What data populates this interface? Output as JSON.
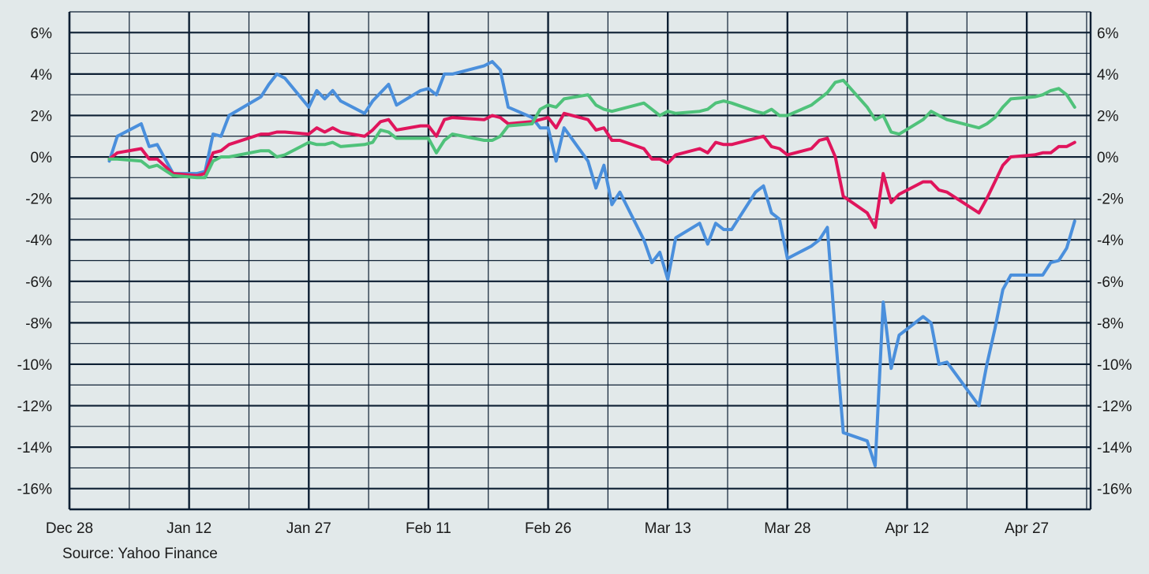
{
  "source_text": "Source: Yahoo Finance",
  "chart_data": {
    "type": "line",
    "title": "",
    "xlabel": "",
    "ylabel": "",
    "x_range": [
      "2024-12-28",
      "2025-05-05"
    ],
    "ylim": [
      -17,
      7
    ],
    "y_ticks": [
      6,
      4,
      2,
      0,
      -2,
      -4,
      -6,
      -8,
      -10,
      -12,
      -14,
      -16
    ],
    "y_tick_labels": [
      "6%",
      "4%",
      "2%",
      "0%",
      "-2%",
      "-4%",
      "-6%",
      "-8%",
      "-10%",
      "-12%",
      "-14%",
      "-16%"
    ],
    "x_ticks": [
      "2024-12-28",
      "2025-01-12",
      "2025-01-27",
      "2025-02-11",
      "2025-02-26",
      "2025-03-13",
      "2025-03-28",
      "2025-04-12",
      "2025-04-27"
    ],
    "x_tick_labels": [
      "Dec 28",
      "Jan 12",
      "Jan 27",
      "Feb 11",
      "Feb 26",
      "Mar 13",
      "Mar 28",
      "Apr 12",
      "Apr 27"
    ],
    "grid": true,
    "colors": {
      "blue": "#4a8fdc",
      "red": "#e0155c",
      "green": "#4fc27a"
    },
    "series": [
      {
        "color": "#4a8fdc",
        "points": [
          [
            "2025-01-02",
            -0.2
          ],
          [
            "2025-01-03",
            1.0
          ],
          [
            "2025-01-06",
            1.6
          ],
          [
            "2025-01-07",
            0.5
          ],
          [
            "2025-01-08",
            0.6
          ],
          [
            "2025-01-10",
            -0.8
          ],
          [
            "2025-01-13",
            -0.8
          ],
          [
            "2025-01-14",
            -0.7
          ],
          [
            "2025-01-15",
            1.1
          ],
          [
            "2025-01-16",
            1.0
          ],
          [
            "2025-01-17",
            2.0
          ],
          [
            "2025-01-21",
            2.9
          ],
          [
            "2025-01-22",
            3.5
          ],
          [
            "2025-01-23",
            4.0
          ],
          [
            "2025-01-24",
            3.8
          ],
          [
            "2025-01-27",
            2.4
          ],
          [
            "2025-01-28",
            3.2
          ],
          [
            "2025-01-29",
            2.8
          ],
          [
            "2025-01-30",
            3.2
          ],
          [
            "2025-01-31",
            2.7
          ],
          [
            "2025-02-03",
            2.1
          ],
          [
            "2025-02-04",
            2.7
          ],
          [
            "2025-02-05",
            3.1
          ],
          [
            "2025-02-06",
            3.5
          ],
          [
            "2025-02-07",
            2.5
          ],
          [
            "2025-02-10",
            3.2
          ],
          [
            "2025-02-11",
            3.3
          ],
          [
            "2025-02-12",
            3.0
          ],
          [
            "2025-02-13",
            4.0
          ],
          [
            "2025-02-14",
            4.0
          ],
          [
            "2025-02-18",
            4.4
          ],
          [
            "2025-02-19",
            4.6
          ],
          [
            "2025-02-20",
            4.2
          ],
          [
            "2025-02-21",
            2.4
          ],
          [
            "2025-02-24",
            1.9
          ],
          [
            "2025-02-25",
            1.4
          ],
          [
            "2025-02-26",
            1.4
          ],
          [
            "2025-02-27",
            -0.2
          ],
          [
            "2025-02-28",
            1.4
          ],
          [
            "2025-03-03",
            -0.2
          ],
          [
            "2025-03-04",
            -1.5
          ],
          [
            "2025-03-05",
            -0.4
          ],
          [
            "2025-03-06",
            -2.3
          ],
          [
            "2025-03-07",
            -1.7
          ],
          [
            "2025-03-10",
            -4.0
          ],
          [
            "2025-03-11",
            -5.1
          ],
          [
            "2025-03-12",
            -4.6
          ],
          [
            "2025-03-13",
            -5.9
          ],
          [
            "2025-03-14",
            -3.9
          ],
          [
            "2025-03-17",
            -3.2
          ],
          [
            "2025-03-18",
            -4.2
          ],
          [
            "2025-03-19",
            -3.2
          ],
          [
            "2025-03-20",
            -3.5
          ],
          [
            "2025-03-21",
            -3.5
          ],
          [
            "2025-03-24",
            -1.7
          ],
          [
            "2025-03-25",
            -1.4
          ],
          [
            "2025-03-26",
            -2.7
          ],
          [
            "2025-03-27",
            -3.0
          ],
          [
            "2025-03-28",
            -4.9
          ],
          [
            "2025-03-31",
            -4.3
          ],
          [
            "2025-04-01",
            -4.0
          ],
          [
            "2025-04-02",
            -3.4
          ],
          [
            "2025-04-03",
            -8.5
          ],
          [
            "2025-04-04",
            -13.3
          ],
          [
            "2025-04-07",
            -13.7
          ],
          [
            "2025-04-08",
            -14.9
          ],
          [
            "2025-04-09",
            -7.0
          ],
          [
            "2025-04-10",
            -10.2
          ],
          [
            "2025-04-11",
            -8.6
          ],
          [
            "2025-04-14",
            -7.7
          ],
          [
            "2025-04-15",
            -8.0
          ],
          [
            "2025-04-16",
            -10.0
          ],
          [
            "2025-04-17",
            -9.9
          ],
          [
            "2025-04-21",
            -12.0
          ],
          [
            "2025-04-22",
            -10.0
          ],
          [
            "2025-04-23",
            -8.3
          ],
          [
            "2025-04-24",
            -6.4
          ],
          [
            "2025-04-25",
            -5.7
          ],
          [
            "2025-04-28",
            -5.7
          ],
          [
            "2025-04-29",
            -5.7
          ],
          [
            "2025-04-30",
            -5.1
          ],
          [
            "2025-05-01",
            -5.0
          ],
          [
            "2025-05-02",
            -4.4
          ],
          [
            "2025-05-03",
            -3.1
          ]
        ]
      },
      {
        "color": "#e0155c",
        "points": [
          [
            "2025-01-02",
            -0.1
          ],
          [
            "2025-01-03",
            0.2
          ],
          [
            "2025-01-06",
            0.4
          ],
          [
            "2025-01-07",
            -0.1
          ],
          [
            "2025-01-08",
            -0.1
          ],
          [
            "2025-01-10",
            -0.8
          ],
          [
            "2025-01-13",
            -0.9
          ],
          [
            "2025-01-14",
            -0.8
          ],
          [
            "2025-01-15",
            0.2
          ],
          [
            "2025-01-16",
            0.3
          ],
          [
            "2025-01-17",
            0.6
          ],
          [
            "2025-01-21",
            1.1
          ],
          [
            "2025-01-22",
            1.1
          ],
          [
            "2025-01-23",
            1.2
          ],
          [
            "2025-01-24",
            1.2
          ],
          [
            "2025-01-27",
            1.1
          ],
          [
            "2025-01-28",
            1.4
          ],
          [
            "2025-01-29",
            1.2
          ],
          [
            "2025-01-30",
            1.4
          ],
          [
            "2025-01-31",
            1.2
          ],
          [
            "2025-02-03",
            1.0
          ],
          [
            "2025-02-04",
            1.3
          ],
          [
            "2025-02-05",
            1.7
          ],
          [
            "2025-02-06",
            1.8
          ],
          [
            "2025-02-07",
            1.3
          ],
          [
            "2025-02-10",
            1.5
          ],
          [
            "2025-02-11",
            1.5
          ],
          [
            "2025-02-12",
            1.0
          ],
          [
            "2025-02-13",
            1.8
          ],
          [
            "2025-02-14",
            1.9
          ],
          [
            "2025-02-18",
            1.8
          ],
          [
            "2025-02-19",
            2.0
          ],
          [
            "2025-02-20",
            1.9
          ],
          [
            "2025-02-21",
            1.6
          ],
          [
            "2025-02-24",
            1.7
          ],
          [
            "2025-02-25",
            1.8
          ],
          [
            "2025-02-26",
            1.9
          ],
          [
            "2025-02-27",
            1.4
          ],
          [
            "2025-02-28",
            2.1
          ],
          [
            "2025-03-03",
            1.8
          ],
          [
            "2025-03-04",
            1.3
          ],
          [
            "2025-03-05",
            1.4
          ],
          [
            "2025-03-06",
            0.8
          ],
          [
            "2025-03-07",
            0.8
          ],
          [
            "2025-03-10",
            0.4
          ],
          [
            "2025-03-11",
            -0.1
          ],
          [
            "2025-03-12",
            -0.1
          ],
          [
            "2025-03-13",
            -0.3
          ],
          [
            "2025-03-14",
            0.1
          ],
          [
            "2025-03-17",
            0.4
          ],
          [
            "2025-03-18",
            0.2
          ],
          [
            "2025-03-19",
            0.7
          ],
          [
            "2025-03-20",
            0.6
          ],
          [
            "2025-03-21",
            0.6
          ],
          [
            "2025-03-24",
            0.9
          ],
          [
            "2025-03-25",
            1.0
          ],
          [
            "2025-03-26",
            0.5
          ],
          [
            "2025-03-27",
            0.4
          ],
          [
            "2025-03-28",
            0.1
          ],
          [
            "2025-03-31",
            0.4
          ],
          [
            "2025-04-01",
            0.8
          ],
          [
            "2025-04-02",
            0.9
          ],
          [
            "2025-04-03",
            0.0
          ],
          [
            "2025-04-04",
            -1.9
          ],
          [
            "2025-04-07",
            -2.7
          ],
          [
            "2025-04-08",
            -3.4
          ],
          [
            "2025-04-09",
            -0.8
          ],
          [
            "2025-04-10",
            -2.2
          ],
          [
            "2025-04-11",
            -1.8
          ],
          [
            "2025-04-14",
            -1.2
          ],
          [
            "2025-04-15",
            -1.2
          ],
          [
            "2025-04-16",
            -1.6
          ],
          [
            "2025-04-17",
            -1.7
          ],
          [
            "2025-04-21",
            -2.7
          ],
          [
            "2025-04-22",
            -2.0
          ],
          [
            "2025-04-23",
            -1.2
          ],
          [
            "2025-04-24",
            -0.4
          ],
          [
            "2025-04-25",
            0.0
          ],
          [
            "2025-04-28",
            0.1
          ],
          [
            "2025-04-29",
            0.2
          ],
          [
            "2025-04-30",
            0.2
          ],
          [
            "2025-05-01",
            0.5
          ],
          [
            "2025-05-02",
            0.5
          ],
          [
            "2025-05-03",
            0.7
          ]
        ]
      },
      {
        "color": "#4fc27a",
        "points": [
          [
            "2025-01-02",
            -0.1
          ],
          [
            "2025-01-03",
            -0.1
          ],
          [
            "2025-01-06",
            -0.2
          ],
          [
            "2025-01-07",
            -0.5
          ],
          [
            "2025-01-08",
            -0.4
          ],
          [
            "2025-01-10",
            -0.9
          ],
          [
            "2025-01-13",
            -1.0
          ],
          [
            "2025-01-14",
            -1.0
          ],
          [
            "2025-01-15",
            -0.2
          ],
          [
            "2025-01-16",
            0.0
          ],
          [
            "2025-01-17",
            0.0
          ],
          [
            "2025-01-21",
            0.3
          ],
          [
            "2025-01-22",
            0.3
          ],
          [
            "2025-01-23",
            0.0
          ],
          [
            "2025-01-24",
            0.1
          ],
          [
            "2025-01-27",
            0.7
          ],
          [
            "2025-01-28",
            0.6
          ],
          [
            "2025-01-29",
            0.6
          ],
          [
            "2025-01-30",
            0.7
          ],
          [
            "2025-01-31",
            0.5
          ],
          [
            "2025-02-03",
            0.6
          ],
          [
            "2025-02-04",
            0.7
          ],
          [
            "2025-02-05",
            1.3
          ],
          [
            "2025-02-06",
            1.2
          ],
          [
            "2025-02-07",
            0.9
          ],
          [
            "2025-02-10",
            0.9
          ],
          [
            "2025-02-11",
            0.9
          ],
          [
            "2025-02-12",
            0.2
          ],
          [
            "2025-02-13",
            0.8
          ],
          [
            "2025-02-14",
            1.1
          ],
          [
            "2025-02-18",
            0.8
          ],
          [
            "2025-02-19",
            0.8
          ],
          [
            "2025-02-20",
            1.0
          ],
          [
            "2025-02-21",
            1.5
          ],
          [
            "2025-02-24",
            1.6
          ],
          [
            "2025-02-25",
            2.3
          ],
          [
            "2025-02-26",
            2.5
          ],
          [
            "2025-02-27",
            2.4
          ],
          [
            "2025-02-28",
            2.8
          ],
          [
            "2025-03-03",
            3.0
          ],
          [
            "2025-03-04",
            2.5
          ],
          [
            "2025-03-05",
            2.3
          ],
          [
            "2025-03-06",
            2.2
          ],
          [
            "2025-03-07",
            2.3
          ],
          [
            "2025-03-10",
            2.6
          ],
          [
            "2025-03-11",
            2.3
          ],
          [
            "2025-03-12",
            2.0
          ],
          [
            "2025-03-13",
            2.2
          ],
          [
            "2025-03-14",
            2.1
          ],
          [
            "2025-03-17",
            2.2
          ],
          [
            "2025-03-18",
            2.3
          ],
          [
            "2025-03-19",
            2.6
          ],
          [
            "2025-03-20",
            2.7
          ],
          [
            "2025-03-21",
            2.6
          ],
          [
            "2025-03-24",
            2.2
          ],
          [
            "2025-03-25",
            2.1
          ],
          [
            "2025-03-26",
            2.3
          ],
          [
            "2025-03-27",
            2.0
          ],
          [
            "2025-03-28",
            2.0
          ],
          [
            "2025-03-31",
            2.5
          ],
          [
            "2025-04-01",
            2.8
          ],
          [
            "2025-04-02",
            3.1
          ],
          [
            "2025-04-03",
            3.6
          ],
          [
            "2025-04-04",
            3.7
          ],
          [
            "2025-04-07",
            2.4
          ],
          [
            "2025-04-08",
            1.8
          ],
          [
            "2025-04-09",
            2.0
          ],
          [
            "2025-04-10",
            1.2
          ],
          [
            "2025-04-11",
            1.1
          ],
          [
            "2025-04-14",
            1.8
          ],
          [
            "2025-04-15",
            2.2
          ],
          [
            "2025-04-16",
            2.0
          ],
          [
            "2025-04-17",
            1.8
          ],
          [
            "2025-04-21",
            1.4
          ],
          [
            "2025-04-22",
            1.6
          ],
          [
            "2025-04-23",
            1.9
          ],
          [
            "2025-04-24",
            2.4
          ],
          [
            "2025-04-25",
            2.8
          ],
          [
            "2025-04-28",
            2.9
          ],
          [
            "2025-04-29",
            3.0
          ],
          [
            "2025-04-30",
            3.2
          ],
          [
            "2025-05-01",
            3.3
          ],
          [
            "2025-05-02",
            3.0
          ],
          [
            "2025-05-03",
            2.4
          ]
        ]
      }
    ]
  }
}
